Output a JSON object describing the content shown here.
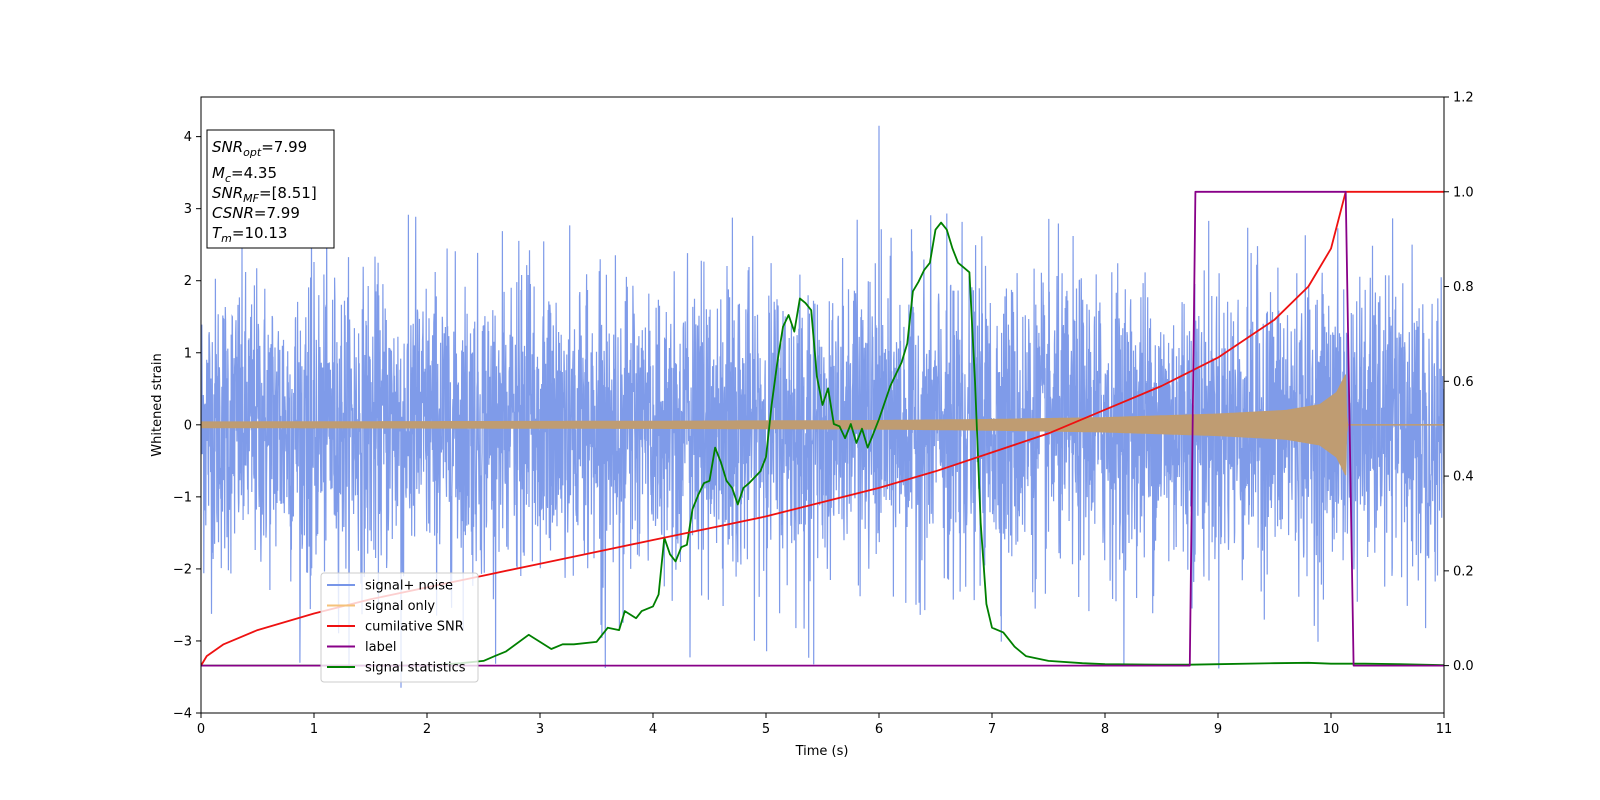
{
  "chart_data": {
    "type": "line",
    "title": "",
    "xlabel": "Time (s)",
    "ylabel": "Whitened strain",
    "ylabel_right": "",
    "xlim": [
      0,
      11
    ],
    "ylim": [
      -4,
      4.55
    ],
    "ylim_right": [
      -0.1,
      1.2
    ],
    "xticks": [
      "0",
      "1",
      "2",
      "3",
      "4",
      "5",
      "6",
      "7",
      "8",
      "9",
      "10",
      "11"
    ],
    "yticks": [
      "4",
      "3",
      "2",
      "1",
      "0",
      "−1",
      "−2",
      "−3",
      "−4"
    ],
    "yticks_right": [
      "1.2",
      "1.0",
      "0.8",
      "0.6",
      "0.4",
      "0.2",
      "0.0"
    ],
    "grid": false,
    "legend_position": "lower-left",
    "annotation": {
      "lines": [
        {
          "base": "SNR",
          "sub": "opt",
          "value": "=7.99"
        },
        {
          "base": "M",
          "sub": "c",
          "value": "=4.35"
        },
        {
          "base": "SNR",
          "sub": "MF",
          "value": "=[8.51]"
        },
        {
          "base": "CSNR",
          "sub": "",
          "value": "=7.99"
        },
        {
          "base": "T",
          "sub": "m",
          "value": "=10.13"
        }
      ]
    },
    "series": [
      {
        "name": "signal+ noise",
        "axis": "left",
        "color": "#7896e8",
        "description_values": {
          "noise_sigma": 1.0,
          "spike_max": 4.15,
          "spike_x": 6.0,
          "spike_min": -3.65
        }
      },
      {
        "name": "signal only",
        "axis": "left",
        "color": "#f5c27a",
        "envelope": {
          "x": [
            0,
            2,
            4,
            6,
            7,
            8,
            9,
            9.6,
            9.9,
            10.05,
            10.13,
            10.14,
            11
          ],
          "amp": [
            0.04,
            0.045,
            0.05,
            0.06,
            0.075,
            0.1,
            0.15,
            0.2,
            0.28,
            0.45,
            0.7,
            0.0,
            0.0
          ]
        }
      },
      {
        "name": "cumilative SNR",
        "axis": "right",
        "color": "#ee1111",
        "x": [
          0,
          0.05,
          0.2,
          0.5,
          1,
          1.5,
          2,
          2.5,
          3,
          3.5,
          4,
          4.5,
          5,
          5.5,
          6,
          6.5,
          7,
          7.5,
          8,
          8.5,
          9,
          9.5,
          9.8,
          10,
          10.13,
          11
        ],
        "y": [
          0.0,
          0.02,
          0.045,
          0.075,
          0.11,
          0.14,
          0.165,
          0.19,
          0.215,
          0.24,
          0.265,
          0.29,
          0.315,
          0.345,
          0.375,
          0.41,
          0.45,
          0.49,
          0.54,
          0.59,
          0.65,
          0.73,
          0.8,
          0.88,
          1.0,
          1.0
        ]
      },
      {
        "name": "label",
        "axis": "right",
        "color": "#880088",
        "x": [
          0,
          8.75,
          8.8,
          10.13,
          10.2,
          11
        ],
        "y": [
          0.0,
          0.0,
          1.0,
          1.0,
          0.0,
          0.0
        ]
      },
      {
        "name": "signal statistics",
        "axis": "right",
        "color": "#008000",
        "x": [
          0,
          1,
          2,
          2.3,
          2.5,
          2.6,
          2.7,
          2.9,
          3.0,
          3.1,
          3.2,
          3.3,
          3.5,
          3.6,
          3.7,
          3.75,
          3.85,
          3.9,
          4.0,
          4.05,
          4.1,
          4.15,
          4.2,
          4.25,
          4.3,
          4.35,
          4.4,
          4.45,
          4.5,
          4.55,
          4.6,
          4.65,
          4.7,
          4.75,
          4.8,
          4.85,
          4.95,
          5.0,
          5.05,
          5.1,
          5.15,
          5.2,
          5.25,
          5.3,
          5.35,
          5.4,
          5.45,
          5.5,
          5.55,
          5.6,
          5.65,
          5.7,
          5.75,
          5.8,
          5.85,
          5.9,
          5.95,
          6.0,
          6.1,
          6.2,
          6.25,
          6.3,
          6.35,
          6.4,
          6.45,
          6.5,
          6.55,
          6.6,
          6.65,
          6.7,
          6.75,
          6.8,
          6.85,
          6.9,
          6.95,
          7.0,
          7.1,
          7.2,
          7.3,
          7.5,
          7.8,
          8.0,
          8.5,
          8.75,
          9.0,
          9.5,
          9.8,
          10.0,
          10.3,
          10.6,
          11
        ],
        "y": [
          0.0,
          0.0,
          0.0,
          0.005,
          0.01,
          0.02,
          0.03,
          0.065,
          0.05,
          0.035,
          0.045,
          0.045,
          0.05,
          0.08,
          0.075,
          0.115,
          0.1,
          0.115,
          0.125,
          0.15,
          0.27,
          0.235,
          0.22,
          0.25,
          0.255,
          0.33,
          0.36,
          0.385,
          0.39,
          0.46,
          0.43,
          0.39,
          0.375,
          0.34,
          0.375,
          0.385,
          0.41,
          0.44,
          0.55,
          0.64,
          0.715,
          0.74,
          0.705,
          0.775,
          0.765,
          0.75,
          0.61,
          0.55,
          0.585,
          0.51,
          0.505,
          0.48,
          0.51,
          0.47,
          0.5,
          0.46,
          0.49,
          0.52,
          0.59,
          0.64,
          0.68,
          0.79,
          0.81,
          0.835,
          0.85,
          0.92,
          0.935,
          0.92,
          0.88,
          0.85,
          0.84,
          0.83,
          0.6,
          0.3,
          0.13,
          0.08,
          0.07,
          0.04,
          0.02,
          0.01,
          0.005,
          0.003,
          0.002,
          0.002,
          0.003,
          0.005,
          0.006,
          0.004,
          0.004,
          0.003,
          0.001
        ]
      }
    ]
  }
}
